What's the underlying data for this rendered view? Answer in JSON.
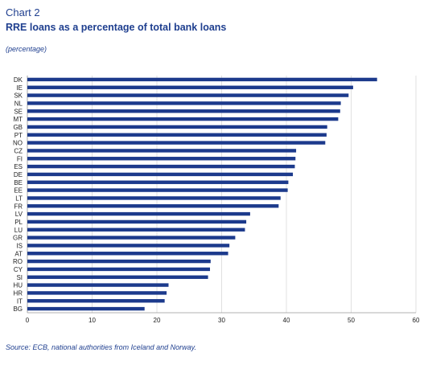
{
  "header": {
    "chart_number": "Chart 2",
    "title": "RRE loans as a percentage of total bank loans",
    "subtitle": "(percentage)"
  },
  "footer": {
    "source": "Source: ECB, national authorities from Iceland and Norway."
  },
  "colors": {
    "bar": "#1c3a8c",
    "title": "#1f3f8f",
    "grid": "#d9d9d9",
    "axis": "#999999"
  },
  "chart_data": {
    "type": "bar",
    "orientation": "horizontal",
    "title": "RRE loans as a percentage of total bank loans",
    "xlabel": "",
    "ylabel": "",
    "xlim": [
      0,
      60
    ],
    "xticks": [
      0,
      10,
      20,
      30,
      40,
      50,
      60
    ],
    "grid": true,
    "legend": "none",
    "categories": [
      "DK",
      "IE",
      "SK",
      "NL",
      "SE",
      "MT",
      "GB",
      "PT",
      "NO",
      "CZ",
      "FI",
      "ES",
      "DE",
      "BE",
      "EE",
      "LT",
      "FR",
      "LV",
      "PL",
      "LU",
      "GR",
      "IS",
      "AT",
      "RO",
      "CY",
      "SI",
      "HU",
      "HR",
      "IT",
      "BG"
    ],
    "values": [
      54.0,
      50.3,
      49.6,
      48.4,
      48.3,
      48.0,
      46.3,
      46.2,
      46.0,
      41.5,
      41.4,
      41.3,
      41.0,
      40.3,
      40.2,
      39.1,
      38.8,
      34.4,
      33.8,
      33.6,
      32.1,
      31.2,
      31.0,
      28.3,
      28.2,
      27.9,
      21.8,
      21.5,
      21.2,
      18.1
    ]
  }
}
